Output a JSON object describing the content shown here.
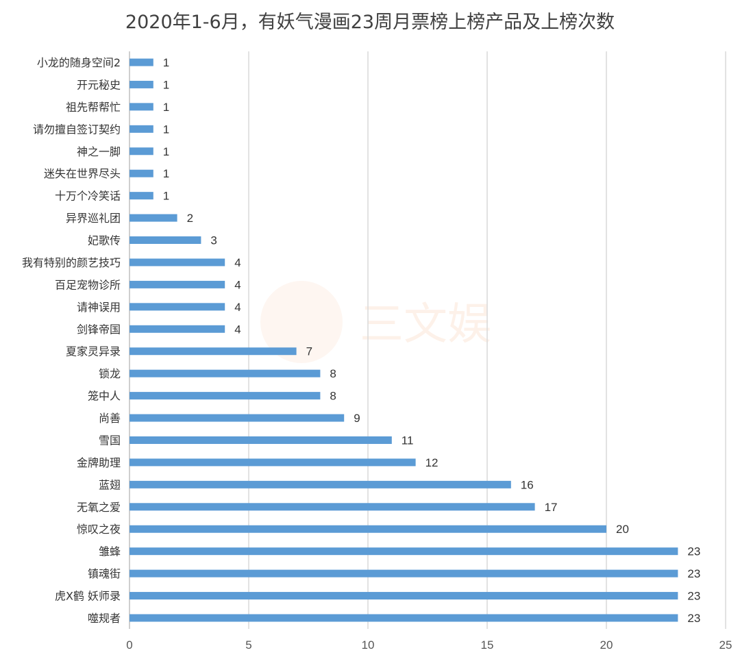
{
  "chart_data": {
    "type": "bar",
    "orientation": "horizontal",
    "title": "2020年1-6月，有妖气漫画23周月票榜上榜产品及上榜次数",
    "categories": [
      "小龙的随身空间2",
      "开元秘史",
      "祖先帮帮忙",
      "请勿擅自签订契约",
      "神之一脚",
      "迷失在世界尽头",
      "十万个冷笑话",
      "异界巡礼团",
      "妃歌传",
      "我有特别的颜艺技巧",
      "百足宠物诊所",
      "请神误用",
      "剑锋帝国",
      "夏家灵异录",
      "锁龙",
      "笼中人",
      "尚善",
      "雪国",
      "金牌助理",
      "蓝翅",
      "无氧之爱",
      "惊叹之夜",
      "雏蜂",
      "镇魂街",
      "虎X鹤 妖师录",
      "噬规者"
    ],
    "values": [
      1,
      1,
      1,
      1,
      1,
      1,
      1,
      2,
      3,
      4,
      4,
      4,
      4,
      7,
      8,
      8,
      9,
      11,
      12,
      16,
      17,
      20,
      23,
      23,
      23,
      23
    ],
    "xlim": [
      0,
      25
    ],
    "x_ticks": [
      0,
      5,
      10,
      15,
      20,
      25
    ],
    "grid": true,
    "bar_color": "#5b9bd5",
    "watermark": "三文娱"
  }
}
